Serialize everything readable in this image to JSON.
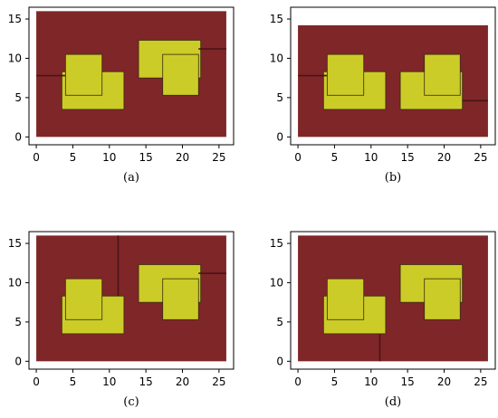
{
  "colors": {
    "background_region": "#7f2628",
    "obstacle_fill": "#cccc28",
    "obstacle_stroke": "#3a2a10",
    "path_line": "#4a1414",
    "frame": "#000000"
  },
  "chart_data": [
    {
      "type": "floorplan",
      "caption": "(a)",
      "xlim": [
        -1,
        27
      ],
      "ylim": [
        -1,
        16.5
      ],
      "xticks": [
        0,
        5,
        10,
        15,
        20,
        25
      ],
      "yticks": [
        0,
        5,
        10,
        15
      ],
      "background_region": {
        "x0": 0,
        "x1": 26,
        "y0": 0,
        "y1": 16
      },
      "rectangles": [
        {
          "x0": 3.5,
          "x1": 12,
          "y0": 3.5,
          "y1": 8.3
        },
        {
          "x0": 4,
          "x1": 9,
          "y0": 5.3,
          "y1": 10.5
        },
        {
          "x0": 14,
          "x1": 22.5,
          "y0": 7.5,
          "y1": 12.3
        },
        {
          "x0": 17.3,
          "x1": 22.2,
          "y0": 5.3,
          "y1": 10.5
        }
      ],
      "walls": [
        {
          "x1": 0,
          "y1": 7.8,
          "x2": 4,
          "y2": 7.8
        },
        {
          "x1": 22.2,
          "y1": 11.2,
          "x2": 26,
          "y2": 11.2
        }
      ]
    },
    {
      "type": "floorplan",
      "caption": "(b)",
      "xlim": [
        -1,
        27
      ],
      "ylim": [
        -1,
        16.5
      ],
      "xticks": [
        0,
        5,
        10,
        15,
        20,
        25
      ],
      "yticks": [
        0,
        5,
        10,
        15
      ],
      "background_region": {
        "x0": 0,
        "x1": 26,
        "y0": 0,
        "y1": 14.2
      },
      "rectangles": [
        {
          "x0": 3.5,
          "x1": 12,
          "y0": 3.5,
          "y1": 8.3
        },
        {
          "x0": 4,
          "x1": 9,
          "y0": 5.3,
          "y1": 10.5
        },
        {
          "x0": 14,
          "x1": 22.5,
          "y0": 3.5,
          "y1": 8.3
        },
        {
          "x0": 17.3,
          "x1": 22.2,
          "y0": 5.3,
          "y1": 10.5
        }
      ],
      "walls": [
        {
          "x1": 0,
          "y1": 7.8,
          "x2": 4,
          "y2": 7.8
        },
        {
          "x1": 22.5,
          "y1": 4.6,
          "x2": 26,
          "y2": 4.6
        }
      ]
    },
    {
      "type": "floorplan",
      "caption": "(c)",
      "xlim": [
        -1,
        27
      ],
      "ylim": [
        -1,
        16.5
      ],
      "xticks": [
        0,
        5,
        10,
        15,
        20,
        25
      ],
      "yticks": [
        0,
        5,
        10,
        15
      ],
      "background_region": {
        "x0": 0,
        "x1": 26,
        "y0": 0,
        "y1": 16
      },
      "rectangles": [
        {
          "x0": 3.5,
          "x1": 12,
          "y0": 3.5,
          "y1": 8.3
        },
        {
          "x0": 4,
          "x1": 9,
          "y0": 5.3,
          "y1": 10.5
        },
        {
          "x0": 14,
          "x1": 22.5,
          "y0": 7.5,
          "y1": 12.3
        },
        {
          "x0": 17.3,
          "x1": 22.2,
          "y0": 5.3,
          "y1": 10.5
        }
      ],
      "walls": [
        {
          "x1": 11.2,
          "y1": 8.3,
          "x2": 11.2,
          "y2": 16
        },
        {
          "x1": 22.2,
          "y1": 11.2,
          "x2": 26,
          "y2": 11.2
        }
      ]
    },
    {
      "type": "floorplan",
      "caption": "(d)",
      "xlim": [
        -1,
        27
      ],
      "ylim": [
        -1,
        16.5
      ],
      "xticks": [
        0,
        5,
        10,
        15,
        20,
        25
      ],
      "yticks": [
        0,
        5,
        10,
        15
      ],
      "background_region": {
        "x0": 0,
        "x1": 26,
        "y0": 0,
        "y1": 16
      },
      "rectangles": [
        {
          "x0": 3.5,
          "x1": 12,
          "y0": 3.5,
          "y1": 8.3
        },
        {
          "x0": 4,
          "x1": 9,
          "y0": 5.3,
          "y1": 10.5
        },
        {
          "x0": 14,
          "x1": 22.5,
          "y0": 7.5,
          "y1": 12.3
        },
        {
          "x0": 17.3,
          "x1": 22.2,
          "y0": 5.3,
          "y1": 10.5
        }
      ],
      "walls": [
        {
          "x1": 11.2,
          "y1": 0,
          "x2": 11.2,
          "y2": 3.5
        }
      ]
    }
  ]
}
